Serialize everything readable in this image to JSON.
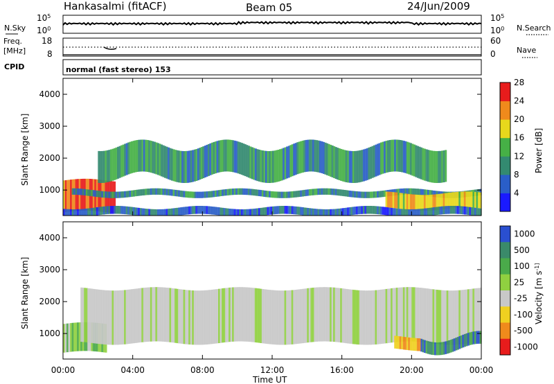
{
  "header": {
    "station": "Hankasalmi (fitACF)",
    "beam": "Beam 05",
    "date": "24/Jun/2009"
  },
  "noise_panel": {
    "left_label": "N.Sky",
    "right_label": "N.Search",
    "left_ticks": [
      "10^5",
      "10^0"
    ],
    "right_ticks": [
      "10^5",
      "10^0"
    ]
  },
  "freq_panel": {
    "left_label_1": "Freq.",
    "left_label_2": "[MHz]",
    "right_label": "Nave",
    "left_ticks": [
      "18",
      "8"
    ],
    "right_ticks": [
      "60",
      "0"
    ]
  },
  "cpid_panel": {
    "label": "CPID",
    "text": "normal (fast stereo) 153"
  },
  "chart_data": [
    {
      "type": "heatmap",
      "title": "",
      "xlabel": "Time UT",
      "ylabel": "Slant Range [km]",
      "x_ticks": [
        "00:00",
        "04:00",
        "08:00",
        "12:00",
        "16:00",
        "20:00",
        "00:00"
      ],
      "y_ticks": [
        1000,
        2000,
        3000,
        4000
      ],
      "ylim": [
        200,
        4500
      ],
      "colorbar": {
        "label": "Power [dB]",
        "ticks": [
          "4",
          "8",
          "12",
          "16",
          "20",
          "24",
          "28"
        ],
        "colors": [
          "#1a1aff",
          "#2a5ec8",
          "#338a70",
          "#46b046",
          "#e8d81c",
          "#f08a1c",
          "#e81c1c"
        ]
      },
      "bands": [
        {
          "time_start": 0.0,
          "time_end": 3.0,
          "range_start": 300,
          "range_end": 1300,
          "level": 0.9
        },
        {
          "time_start": 0.5,
          "time_end": 24.0,
          "range_start": 800,
          "range_end": 1000,
          "level": 0.3
        },
        {
          "time_start": 2.0,
          "time_end": 22.0,
          "range_start": 1400,
          "range_end": 2400,
          "level": 0.35
        },
        {
          "time_start": 18.5,
          "time_end": 24.0,
          "range_start": 400,
          "range_end": 900,
          "level": 0.7
        },
        {
          "time_start": 0.0,
          "time_end": 24.0,
          "range_start": 200,
          "range_end": 450,
          "level": 0.2
        }
      ]
    },
    {
      "type": "heatmap",
      "title": "",
      "xlabel": "Time UT",
      "ylabel": "Slant Range [km]",
      "x_ticks": [
        "00:00",
        "04:00",
        "08:00",
        "12:00",
        "16:00",
        "20:00",
        "00:00"
      ],
      "y_ticks": [
        1000,
        2000,
        3000,
        4000
      ],
      "ylim": [
        200,
        4500
      ],
      "colorbar": {
        "label": "Velocity [m s^-1]",
        "ticks": [
          "1000",
          "500",
          "100",
          "25",
          "-25",
          "-100",
          "-500",
          "-1000"
        ],
        "colors": [
          "#2a4fd0",
          "#3a8a6a",
          "#4aaa4a",
          "#90d040",
          "#c8c8c8",
          "#f0d020",
          "#f08a1c",
          "#e81c1c"
        ]
      },
      "bands": [
        {
          "time_start": 0.0,
          "time_end": 2.5,
          "range_start": 400,
          "range_end": 1300,
          "level": "low_velocity_green"
        },
        {
          "time_start": 1.0,
          "time_end": 24.0,
          "range_start": 700,
          "range_end": 2400,
          "level": "near_zero_gray"
        },
        {
          "time_start": 20.5,
          "time_end": 24.0,
          "range_start": 500,
          "range_end": 900,
          "level": "positive_green_blue"
        },
        {
          "time_start": 19.0,
          "time_end": 20.5,
          "range_start": 500,
          "range_end": 900,
          "level": "negative_orange"
        }
      ]
    }
  ]
}
